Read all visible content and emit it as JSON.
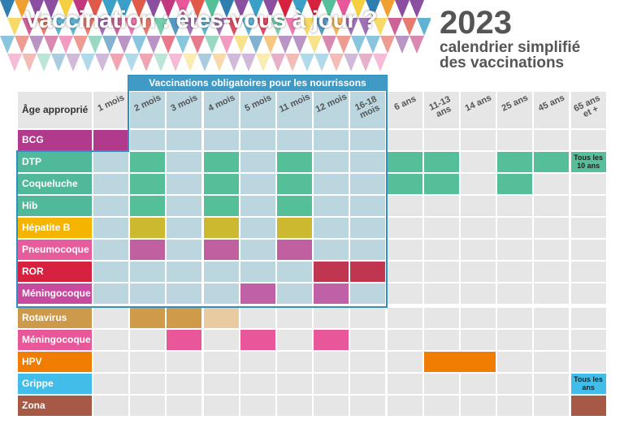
{
  "header": {
    "title": "Vaccination : êtes-vous à jour ?",
    "year": "2023",
    "subtitle_line1": "calendrier simplifié",
    "subtitle_line2": "des vaccinations"
  },
  "table": {
    "banner": "Vaccinations obligatoires pour les nourrissons",
    "corner": "Âge approprié",
    "columns": [
      "1 mois",
      "2 mois",
      "3 mois",
      "4 mois",
      "5 mois",
      "11 mois",
      "12 mois",
      "16-18 mois",
      "6 ans",
      "11-13 ans",
      "14 ans",
      "25 ans",
      "45 ans",
      "65 ans et +"
    ],
    "rows": [
      {
        "label": "BCG"
      },
      {
        "label": "DTP",
        "note": "Tous les 10 ans"
      },
      {
        "label": "Coqueluche"
      },
      {
        "label": "Hib"
      },
      {
        "label": "Hépatite B"
      },
      {
        "label": "Pneumocoque"
      },
      {
        "label": "ROR"
      },
      {
        "label": "Méningocoque C"
      },
      {
        "label": "Rotavirus"
      },
      {
        "label": "Méningocoque B"
      },
      {
        "label": "HPV"
      },
      {
        "label": "Grippe",
        "note": "Tous les ans"
      },
      {
        "label": "Zona"
      }
    ]
  }
}
